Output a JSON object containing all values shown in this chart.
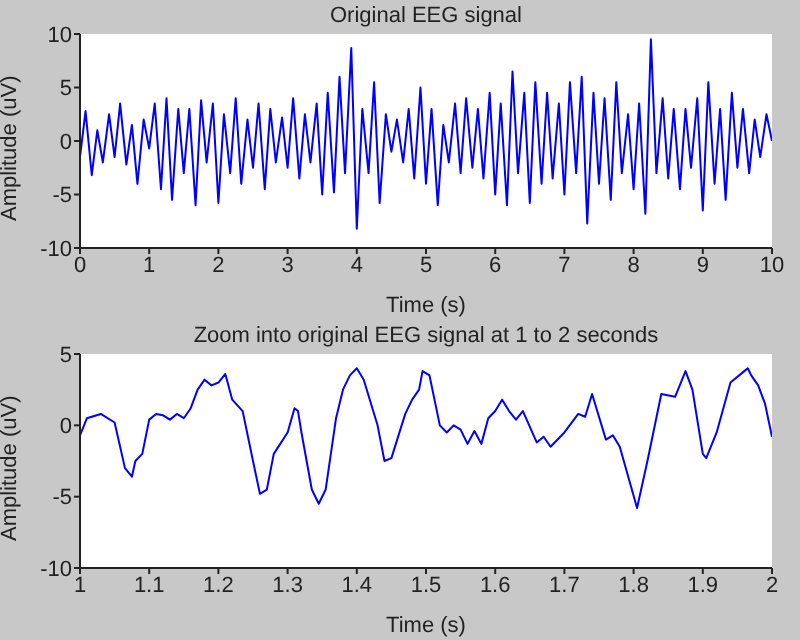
{
  "chart_data": [
    {
      "type": "line",
      "title": "Original EEG signal",
      "xlabel": "Time (s)",
      "ylabel": "Amplitude (uV)",
      "xlim": [
        0,
        10
      ],
      "xticks": [
        0,
        1,
        2,
        3,
        4,
        5,
        6,
        7,
        8,
        9,
        10
      ],
      "ylim": [
        -10,
        10
      ],
      "yticks": [
        -10,
        -5,
        0,
        5,
        10
      ],
      "marker": "none",
      "x": [
        0,
        0.08,
        0.17,
        0.25,
        0.33,
        0.42,
        0.5,
        0.58,
        0.67,
        0.75,
        0.83,
        0.92,
        1,
        1.08,
        1.17,
        1.25,
        1.33,
        1.42,
        1.5,
        1.58,
        1.67,
        1.75,
        1.83,
        1.92,
        2,
        2.08,
        2.17,
        2.25,
        2.33,
        2.42,
        2.5,
        2.58,
        2.67,
        2.75,
        2.83,
        2.92,
        3,
        3.08,
        3.17,
        3.25,
        3.33,
        3.42,
        3.5,
        3.58,
        3.67,
        3.75,
        3.83,
        3.92,
        4,
        4.08,
        4.17,
        4.25,
        4.33,
        4.42,
        4.5,
        4.58,
        4.67,
        4.75,
        4.83,
        4.92,
        5,
        5.08,
        5.17,
        5.25,
        5.33,
        5.42,
        5.5,
        5.58,
        5.67,
        5.75,
        5.83,
        5.92,
        6,
        6.08,
        6.17,
        6.25,
        6.33,
        6.42,
        6.5,
        6.58,
        6.67,
        6.75,
        6.83,
        6.92,
        7,
        7.08,
        7.17,
        7.25,
        7.33,
        7.42,
        7.5,
        7.58,
        7.67,
        7.75,
        7.83,
        7.92,
        8,
        8.08,
        8.17,
        8.25,
        8.33,
        8.42,
        8.5,
        8.58,
        8.67,
        8.75,
        8.83,
        8.92,
        9,
        9.08,
        9.17,
        9.25,
        9.33,
        9.42,
        9.5,
        9.58,
        9.67,
        9.75,
        9.83,
        9.92,
        10
      ],
      "series": [
        {
          "color": "#0000ff",
          "values": [
            -1.5,
            2.8,
            -3.2,
            1.0,
            -2.0,
            2.5,
            -1.5,
            3.5,
            -2.2,
            1.5,
            -4.0,
            2.0,
            -0.7,
            3.5,
            -4.5,
            4.0,
            -5.5,
            3.0,
            -3.0,
            3.0,
            -6.0,
            3.8,
            -2.0,
            3.5,
            -5.8,
            2.5,
            -3.0,
            4.0,
            -4.0,
            2.0,
            -2.5,
            3.5,
            -4.5,
            3.0,
            -2.0,
            2.2,
            -2.5,
            4.0,
            -3.5,
            2.5,
            -2.0,
            3.5,
            -5.0,
            4.5,
            -4.8,
            6.0,
            -3.0,
            8.7,
            -8.2,
            3.0,
            -3.0,
            5.5,
            -5.8,
            2.5,
            -1.0,
            2.0,
            -2.0,
            3.0,
            -3.5,
            5.0,
            -4.0,
            3.0,
            -6.0,
            1.5,
            -2.0,
            3.5,
            -3.0,
            4.0,
            -2.5,
            3.0,
            -3.5,
            4.5,
            -5.0,
            3.5,
            -6.0,
            6.5,
            -3.0,
            4.5,
            -5.8,
            5.5,
            -4.0,
            4.5,
            -3.5,
            3.5,
            -5.0,
            5.5,
            -3.0,
            6.0,
            -7.7,
            4.5,
            -4.0,
            4.0,
            -5.5,
            5.5,
            -3.0,
            2.5,
            -4.5,
            3.5,
            -6.8,
            9.5,
            -3.0,
            4.0,
            -3.5,
            3.0,
            -4.5,
            3.0,
            -2.5,
            4.0,
            -6.5,
            5.5,
            -4.0,
            3.0,
            -5.5,
            4.5,
            -2.5,
            3.0,
            -3.0,
            2.0,
            -1.5,
            2.5,
            0
          ]
        }
      ]
    },
    {
      "type": "line",
      "title": "Zoom into original EEG signal at 1 to 2 seconds",
      "xlabel": "Time (s)",
      "ylabel": "Amplitude (uV)",
      "xlim": [
        1,
        2
      ],
      "xticks": [
        1,
        1.1,
        1.2,
        1.3,
        1.4,
        1.5,
        1.6,
        1.7,
        1.8,
        1.9,
        2
      ],
      "ylim": [
        -10,
        5
      ],
      "yticks": [
        -10,
        -5,
        0,
        5
      ],
      "marker": "none",
      "x": [
        1,
        1.01,
        1.03,
        1.05,
        1.065,
        1.075,
        1.08,
        1.09,
        1.1,
        1.11,
        1.12,
        1.13,
        1.14,
        1.15,
        1.16,
        1.17,
        1.18,
        1.19,
        1.2,
        1.21,
        1.22,
        1.235,
        1.25,
        1.26,
        1.27,
        1.28,
        1.3,
        1.31,
        1.315,
        1.32,
        1.335,
        1.345,
        1.355,
        1.37,
        1.38,
        1.39,
        1.4,
        1.41,
        1.43,
        1.44,
        1.45,
        1.47,
        1.48,
        1.49,
        1.495,
        1.505,
        1.52,
        1.53,
        1.54,
        1.55,
        1.56,
        1.57,
        1.58,
        1.59,
        1.6,
        1.61,
        1.62,
        1.63,
        1.64,
        1.66,
        1.67,
        1.68,
        1.7,
        1.72,
        1.73,
        1.74,
        1.76,
        1.77,
        1.78,
        1.805,
        1.82,
        1.84,
        1.86,
        1.875,
        1.885,
        1.9,
        1.905,
        1.92,
        1.94,
        1.96,
        1.965,
        1.97,
        1.98,
        1.99,
        2
      ],
      "series": [
        {
          "color": "#0000ff",
          "values": [
            -0.7,
            0.5,
            0.8,
            0.2,
            -3.0,
            -3.6,
            -2.5,
            -2.0,
            0.4,
            0.8,
            0.7,
            0.4,
            0.8,
            0.5,
            1.2,
            2.5,
            3.2,
            2.8,
            3.0,
            3.6,
            1.8,
            1.0,
            -2.5,
            -4.8,
            -4.5,
            -2.0,
            -0.5,
            1.2,
            1.0,
            -0.5,
            -4.5,
            -5.5,
            -4.5,
            0.5,
            2.5,
            3.5,
            4.0,
            3.2,
            0.0,
            -2.5,
            -2.3,
            0.8,
            1.8,
            2.5,
            3.8,
            3.5,
            0.0,
            -0.5,
            0.0,
            -0.3,
            -1.3,
            -0.4,
            -1.3,
            0.5,
            1.0,
            1.8,
            1.0,
            0.4,
            1.0,
            -1.2,
            -0.8,
            -1.5,
            -0.5,
            0.8,
            0.6,
            2.2,
            -1.0,
            -0.7,
            -1.5,
            -5.8,
            -2.5,
            2.2,
            2.0,
            3.8,
            2.5,
            -2.0,
            -2.3,
            -0.5,
            3.0,
            3.8,
            4.0,
            3.5,
            2.8,
            1.5,
            -0.8
          ]
        }
      ]
    }
  ]
}
